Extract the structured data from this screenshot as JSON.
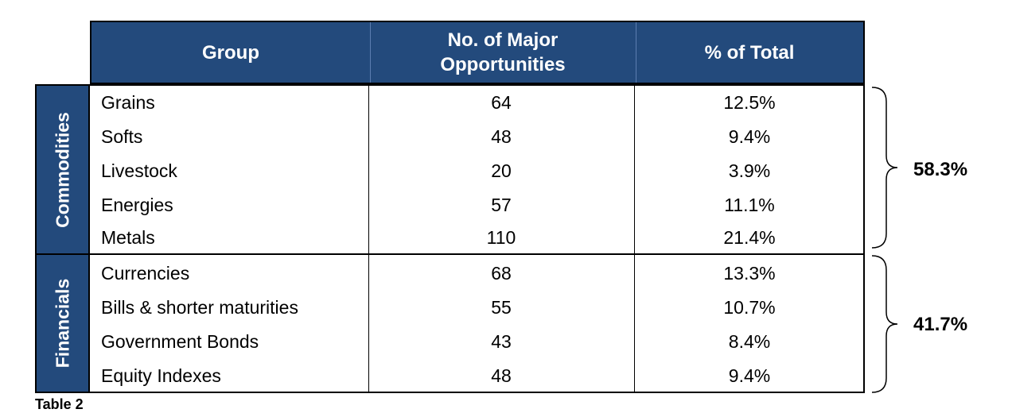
{
  "header": {
    "group": "Group",
    "opportunities_line1": "No. of Major",
    "opportunities_line2": "Opportunities",
    "percent": "% of Total"
  },
  "sections": [
    {
      "label": "Commodities",
      "total": "58.3%",
      "rows": [
        {
          "name": "Grains",
          "count": "64",
          "percent": "12.5%"
        },
        {
          "name": "Softs",
          "count": "48",
          "percent": "9.4%"
        },
        {
          "name": "Livestock",
          "count": "20",
          "percent": "3.9%"
        },
        {
          "name": "Energies",
          "count": "57",
          "percent": "11.1%"
        },
        {
          "name": "Metals",
          "count": "110",
          "percent": "21.4%"
        }
      ]
    },
    {
      "label": "Financials",
      "total": "41.7%",
      "rows": [
        {
          "name": "Currencies",
          "count": "68",
          "percent": "13.3%"
        },
        {
          "name": "Bills & shorter maturities",
          "count": "55",
          "percent": "10.7%"
        },
        {
          "name": "Government Bonds",
          "count": "43",
          "percent": "8.4%"
        },
        {
          "name": "Equity Indexes",
          "count": "48",
          "percent": "9.4%"
        }
      ]
    }
  ],
  "caption": "Table 2"
}
